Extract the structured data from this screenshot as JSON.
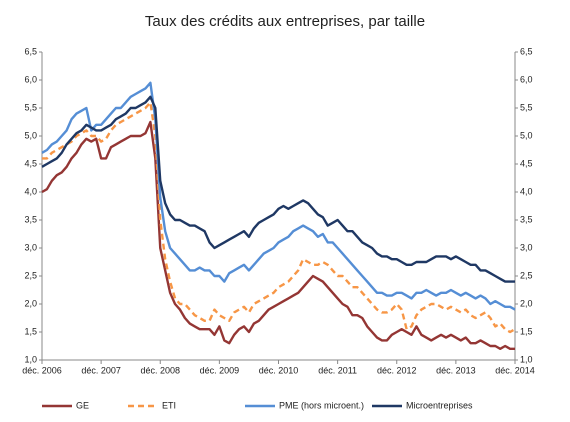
{
  "chart_data": {
    "type": "line",
    "title": "Taux des crédits aux entreprises, par taille",
    "categories": [
      "déc. 2006",
      null,
      null,
      null,
      null,
      null,
      null,
      null,
      null,
      null,
      null,
      null,
      "déc. 2007",
      null,
      null,
      null,
      null,
      null,
      null,
      null,
      null,
      null,
      null,
      null,
      "déc. 2008",
      null,
      null,
      null,
      null,
      null,
      null,
      null,
      null,
      null,
      null,
      null,
      "déc. 2009",
      null,
      null,
      null,
      null,
      null,
      null,
      null,
      null,
      null,
      null,
      null,
      "déc. 2010",
      null,
      null,
      null,
      null,
      null,
      null,
      null,
      null,
      null,
      null,
      null,
      "déc. 2011",
      null,
      null,
      null,
      null,
      null,
      null,
      null,
      null,
      null,
      null,
      null,
      "déc. 2012",
      null,
      null,
      null,
      null,
      null,
      null,
      null,
      null,
      null,
      null,
      null,
      "déc. 2013",
      null,
      null,
      null,
      null,
      null,
      null,
      null,
      null,
      null,
      null,
      null,
      "déc. 2014"
    ],
    "series": [
      {
        "name": "GE",
        "color": "#943634",
        "linestyle": "solid",
        "values": [
          4.0,
          4.05,
          4.2,
          4.3,
          4.35,
          4.45,
          4.6,
          4.7,
          4.85,
          4.95,
          4.9,
          4.95,
          4.6,
          4.6,
          4.8,
          4.85,
          4.9,
          4.95,
          5.0,
          5.0,
          5.0,
          5.05,
          5.25,
          4.6,
          3.0,
          2.6,
          2.2,
          2.0,
          1.9,
          1.75,
          1.65,
          1.6,
          1.55,
          1.55,
          1.55,
          1.45,
          1.6,
          1.35,
          1.3,
          1.45,
          1.55,
          1.6,
          1.5,
          1.65,
          1.7,
          1.8,
          1.9,
          1.95,
          2.0,
          2.05,
          2.1,
          2.15,
          2.2,
          2.3,
          2.4,
          2.5,
          2.45,
          2.4,
          2.3,
          2.2,
          2.1,
          2.0,
          1.95,
          1.8,
          1.8,
          1.75,
          1.6,
          1.5,
          1.4,
          1.35,
          1.35,
          1.45,
          1.5,
          1.55,
          1.5,
          1.45,
          1.6,
          1.45,
          1.4,
          1.35,
          1.4,
          1.45,
          1.4,
          1.45,
          1.4,
          1.35,
          1.4,
          1.3,
          1.3,
          1.35,
          1.3,
          1.25,
          1.25,
          1.2,
          1.25,
          1.2,
          1.2
        ]
      },
      {
        "name": "ETI",
        "color": "#f79646",
        "linestyle": "dashed",
        "values": [
          4.6,
          4.6,
          4.7,
          4.75,
          4.8,
          4.85,
          4.9,
          5.0,
          5.05,
          5.1,
          5.0,
          5.0,
          4.9,
          4.95,
          5.1,
          5.2,
          5.25,
          5.3,
          5.35,
          5.4,
          5.45,
          5.5,
          5.6,
          5.0,
          3.5,
          2.8,
          2.4,
          2.1,
          2.0,
          2.0,
          1.9,
          1.8,
          1.75,
          1.7,
          1.7,
          1.9,
          1.8,
          1.75,
          1.7,
          1.85,
          1.9,
          1.95,
          1.85,
          2.0,
          2.05,
          2.1,
          2.15,
          2.2,
          2.3,
          2.35,
          2.4,
          2.5,
          2.6,
          2.8,
          2.75,
          2.7,
          2.7,
          2.75,
          2.7,
          2.6,
          2.5,
          2.5,
          2.4,
          2.3,
          2.3,
          2.2,
          2.1,
          2.0,
          1.9,
          1.85,
          1.85,
          1.9,
          2.0,
          1.9,
          1.55,
          1.6,
          1.8,
          1.9,
          1.95,
          2.0,
          2.0,
          1.95,
          1.9,
          1.95,
          1.9,
          1.85,
          1.9,
          1.8,
          1.75,
          1.8,
          1.85,
          1.75,
          1.6,
          1.65,
          1.55,
          1.5,
          1.55
        ]
      },
      {
        "name": "PME (hors microent.)",
        "color": "#558ed5",
        "linestyle": "solid",
        "values": [
          4.7,
          4.75,
          4.85,
          4.9,
          5.0,
          5.1,
          5.3,
          5.4,
          5.45,
          5.5,
          5.1,
          5.2,
          5.2,
          5.3,
          5.4,
          5.5,
          5.5,
          5.6,
          5.7,
          5.75,
          5.8,
          5.85,
          5.95,
          5.3,
          3.9,
          3.3,
          3.0,
          2.9,
          2.8,
          2.7,
          2.6,
          2.6,
          2.65,
          2.6,
          2.6,
          2.5,
          2.5,
          2.4,
          2.55,
          2.6,
          2.65,
          2.7,
          2.6,
          2.7,
          2.8,
          2.9,
          2.95,
          3.0,
          3.1,
          3.15,
          3.2,
          3.3,
          3.35,
          3.4,
          3.35,
          3.3,
          3.2,
          3.25,
          3.1,
          3.1,
          3.0,
          2.9,
          2.8,
          2.7,
          2.6,
          2.5,
          2.4,
          2.3,
          2.2,
          2.2,
          2.15,
          2.15,
          2.2,
          2.2,
          2.15,
          2.1,
          2.2,
          2.2,
          2.25,
          2.2,
          2.15,
          2.2,
          2.2,
          2.25,
          2.2,
          2.15,
          2.2,
          2.15,
          2.1,
          2.15,
          2.1,
          2.0,
          2.05,
          2.0,
          1.95,
          1.95,
          1.9
        ]
      },
      {
        "name": "Microentreprises",
        "color": "#1f3864",
        "linestyle": "solid",
        "values": [
          4.45,
          4.5,
          4.55,
          4.6,
          4.7,
          4.85,
          4.95,
          5.05,
          5.1,
          5.2,
          5.15,
          5.1,
          5.1,
          5.15,
          5.2,
          5.3,
          5.35,
          5.4,
          5.5,
          5.5,
          5.55,
          5.6,
          5.7,
          5.5,
          4.2,
          3.8,
          3.6,
          3.5,
          3.5,
          3.45,
          3.4,
          3.4,
          3.35,
          3.3,
          3.1,
          3.0,
          3.05,
          3.1,
          3.15,
          3.2,
          3.25,
          3.3,
          3.2,
          3.35,
          3.45,
          3.5,
          3.55,
          3.6,
          3.7,
          3.75,
          3.7,
          3.75,
          3.8,
          3.85,
          3.8,
          3.7,
          3.6,
          3.55,
          3.4,
          3.45,
          3.5,
          3.4,
          3.3,
          3.3,
          3.2,
          3.1,
          3.05,
          3.0,
          2.9,
          2.85,
          2.85,
          2.8,
          2.8,
          2.75,
          2.7,
          2.7,
          2.75,
          2.75,
          2.75,
          2.8,
          2.85,
          2.85,
          2.85,
          2.8,
          2.85,
          2.8,
          2.75,
          2.7,
          2.7,
          2.6,
          2.6,
          2.55,
          2.5,
          2.45,
          2.4,
          2.4,
          2.4
        ]
      }
    ],
    "ylim": [
      1.0,
      6.5
    ],
    "yticks": [
      {
        "value": 1.0,
        "label": "1,0"
      },
      {
        "value": 1.5,
        "label": "1,5"
      },
      {
        "value": 2.0,
        "label": "2,0"
      },
      {
        "value": 2.5,
        "label": "2,5"
      },
      {
        "value": 3.0,
        "label": "3,0"
      },
      {
        "value": 3.5,
        "label": "3,5"
      },
      {
        "value": 4.0,
        "label": "4,0"
      },
      {
        "value": 4.5,
        "label": "4,5"
      },
      {
        "value": 5.0,
        "label": "5,0"
      },
      {
        "value": 5.5,
        "label": "5,5"
      },
      {
        "value": 6.0,
        "label": "6,0"
      },
      {
        "value": 6.5,
        "label": "6,5"
      }
    ],
    "grid": false,
    "legend": "bottom"
  }
}
